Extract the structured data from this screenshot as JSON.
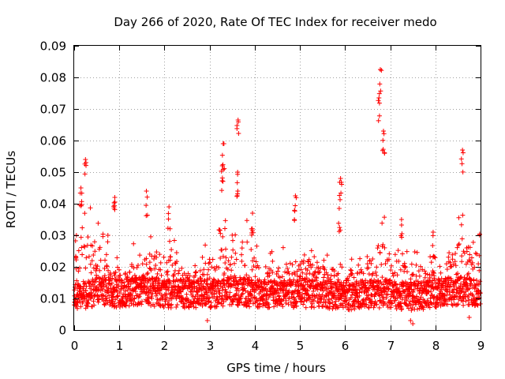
{
  "chart_data": {
    "type": "scatter",
    "title": "Day 266 of 2020, Rate Of TEC Index for receiver medo",
    "xlabel": "GPS time / hours",
    "ylabel": "ROTI / TECUs",
    "xlim": [
      0,
      9
    ],
    "ylim": [
      0,
      0.09
    ],
    "xticks": [
      "0",
      "1",
      "2",
      "3",
      "4",
      "5",
      "6",
      "7",
      "8",
      "9"
    ],
    "yticks": [
      "0",
      "0.01",
      "0.02",
      "0.03",
      "0.04",
      "0.05",
      "0.06",
      "0.07",
      "0.08",
      "0.09"
    ],
    "grid": true,
    "marker": "+",
    "color": "#ff0000",
    "series": [
      {
        "name": "ROTI",
        "baseline": [
          [
            0,
            0.011
          ],
          [
            0.3,
            0.012
          ],
          [
            0.6,
            0.013
          ],
          [
            1,
            0.012
          ],
          [
            1.5,
            0.013
          ],
          [
            2,
            0.012
          ],
          [
            2.5,
            0.012
          ],
          [
            3,
            0.012
          ],
          [
            3.5,
            0.013
          ],
          [
            4,
            0.012
          ],
          [
            4.5,
            0.012
          ],
          [
            5,
            0.012
          ],
          [
            5.5,
            0.012
          ],
          [
            6,
            0.011
          ],
          [
            6.5,
            0.012
          ],
          [
            7,
            0.012
          ],
          [
            7.5,
            0.011
          ],
          [
            8,
            0.012
          ],
          [
            8.5,
            0.013
          ],
          [
            9,
            0.012
          ]
        ],
        "envelope": [
          [
            0,
            0.03
          ],
          [
            0.2,
            0.045
          ],
          [
            0.5,
            0.035
          ],
          [
            0.8,
            0.03
          ],
          [
            1,
            0.025
          ],
          [
            1.3,
            0.028
          ],
          [
            1.6,
            0.03
          ],
          [
            1.9,
            0.035
          ],
          [
            2.2,
            0.03
          ],
          [
            2.5,
            0.025
          ],
          [
            2.8,
            0.025
          ],
          [
            3,
            0.03
          ],
          [
            3.3,
            0.035
          ],
          [
            3.6,
            0.035
          ],
          [
            3.9,
            0.035
          ],
          [
            4.2,
            0.028
          ],
          [
            4.5,
            0.025
          ],
          [
            4.8,
            0.028
          ],
          [
            5.1,
            0.03
          ],
          [
            5.4,
            0.025
          ],
          [
            5.7,
            0.025
          ],
          [
            6,
            0.02
          ],
          [
            6.3,
            0.025
          ],
          [
            6.6,
            0.03
          ],
          [
            6.8,
            0.04
          ],
          [
            7,
            0.03
          ],
          [
            7.2,
            0.035
          ],
          [
            7.5,
            0.028
          ],
          [
            7.8,
            0.025
          ],
          [
            8,
            0.025
          ],
          [
            8.3,
            0.03
          ],
          [
            8.6,
            0.04
          ],
          [
            9,
            0.035
          ]
        ],
        "peaks": [
          {
            "x": 6.78,
            "y": 0.0825
          },
          {
            "x": 6.75,
            "y": 0.0735
          },
          {
            "x": 3.63,
            "y": 0.0665
          },
          {
            "x": 6.85,
            "y": 0.063
          },
          {
            "x": 3.3,
            "y": 0.059
          },
          {
            "x": 8.6,
            "y": 0.057
          },
          {
            "x": 0.25,
            "y": 0.054
          },
          {
            "x": 3.28,
            "y": 0.052
          },
          {
            "x": 3.62,
            "y": 0.05
          },
          {
            "x": 5.9,
            "y": 0.048
          },
          {
            "x": 1.6,
            "y": 0.044
          },
          {
            "x": 0.9,
            "y": 0.042
          },
          {
            "x": 4.9,
            "y": 0.0425
          },
          {
            "x": 2.1,
            "y": 0.039
          },
          {
            "x": 5.87,
            "y": 0.0385
          },
          {
            "x": 3.95,
            "y": 0.037
          },
          {
            "x": 7.25,
            "y": 0.035
          },
          {
            "x": 7.95,
            "y": 0.031
          },
          {
            "x": 0.05,
            "y": 0.03
          },
          {
            "x": 0.15,
            "y": 0.045
          }
        ],
        "lows": [
          {
            "x": 7.5,
            "y": 0.002
          },
          {
            "x": 7.45,
            "y": 0.003
          },
          {
            "x": 2.95,
            "y": 0.003
          },
          {
            "x": 8.75,
            "y": 0.004
          }
        ]
      }
    ]
  }
}
